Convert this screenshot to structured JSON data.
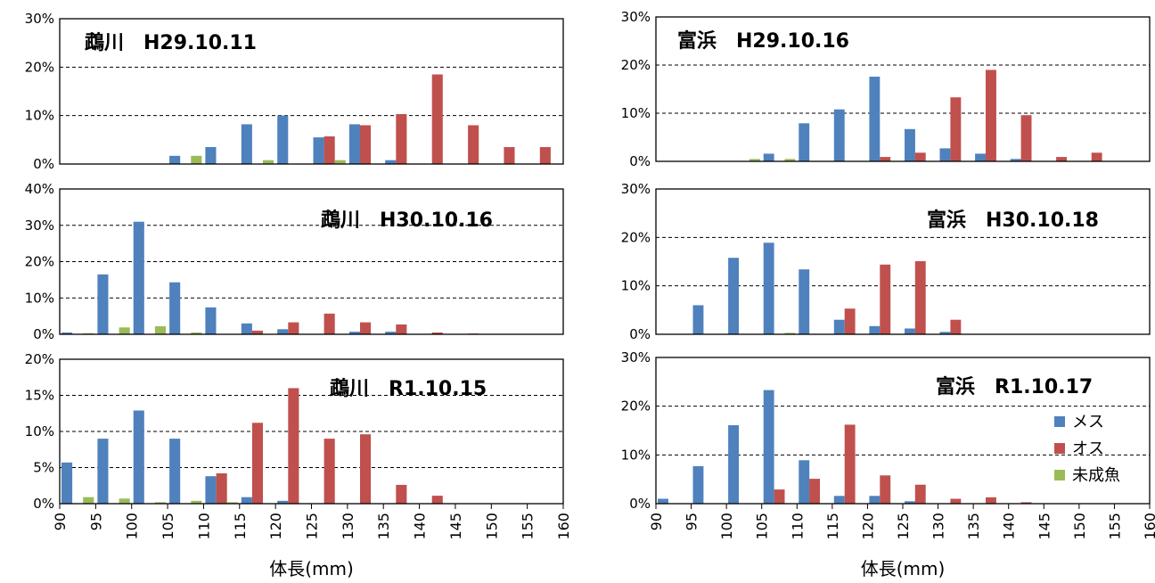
{
  "series_names": [
    "メス",
    "オス",
    "未成魚"
  ],
  "colors": {
    "female": "#4F81BD",
    "male": "#C0504D",
    "juvenile": "#9BBB59",
    "grid": "#000000"
  },
  "x_axis_label": "体長(mm)",
  "chart_data": [
    {
      "type": "bar",
      "title": "鵡川　H29.10.11",
      "ylim": [
        0,
        30
      ],
      "yticks": [
        0,
        10,
        20,
        30
      ],
      "yunit": "%",
      "categories": [
        "90",
        "95",
        "100",
        "105",
        "110",
        "115",
        "120",
        "125",
        "130",
        "135",
        "140",
        "145",
        "150",
        "155"
      ],
      "series": [
        {
          "name": "メス",
          "values": [
            0,
            0,
            0,
            1.7,
            3.5,
            8.2,
            10.0,
            5.5,
            8.2,
            0.8,
            0,
            0,
            0,
            0
          ]
        },
        {
          "name": "オス",
          "values": [
            0,
            0,
            0,
            0,
            0,
            0,
            0,
            5.7,
            8.0,
            10.3,
            18.5,
            8.0,
            3.5,
            3.5
          ]
        },
        {
          "name": "未成魚",
          "values": [
            0,
            0,
            0,
            1.7,
            0,
            0.8,
            0,
            0.8,
            0,
            0,
            0,
            0,
            0,
            0
          ]
        }
      ]
    },
    {
      "type": "bar",
      "title": "鵡川　H30.10.16",
      "ylim": [
        0,
        40
      ],
      "yticks": [
        0,
        10,
        20,
        30,
        40
      ],
      "yunit": "%",
      "categories": [
        "90",
        "95",
        "100",
        "105",
        "110",
        "115",
        "120",
        "125",
        "130",
        "135",
        "140",
        "145",
        "150",
        "155"
      ],
      "series": [
        {
          "name": "メス",
          "values": [
            0.5,
            16.5,
            31.0,
            14.3,
            7.4,
            3.0,
            1.4,
            0,
            0.7,
            0.7,
            0,
            0,
            0,
            0
          ]
        },
        {
          "name": "オス",
          "values": [
            0,
            0,
            0,
            0,
            0,
            1.0,
            3.3,
            5.7,
            3.3,
            2.7,
            0.5,
            0.2,
            0,
            0
          ]
        },
        {
          "name": "未成魚",
          "values": [
            0.3,
            1.9,
            2.2,
            0.5,
            0,
            0,
            0,
            0,
            0,
            0,
            0,
            0,
            0,
            0
          ]
        }
      ]
    },
    {
      "type": "bar",
      "title": "鵡川　R1.10.15",
      "ylim": [
        0,
        20
      ],
      "yticks": [
        0,
        5,
        10,
        15,
        20
      ],
      "yunit": "%",
      "categories": [
        "90",
        "95",
        "100",
        "105",
        "110",
        "115",
        "120",
        "125",
        "130",
        "135",
        "140",
        "145",
        "150",
        "155"
      ],
      "series": [
        {
          "name": "メス",
          "values": [
            5.7,
            9.0,
            12.9,
            9.0,
            3.8,
            0.9,
            0.4,
            0,
            0,
            0,
            0,
            0,
            0,
            0
          ]
        },
        {
          "name": "オス",
          "values": [
            0,
            0,
            0,
            0,
            4.2,
            11.2,
            16.0,
            9.0,
            9.6,
            2.6,
            1.1,
            0,
            0,
            0
          ]
        },
        {
          "name": "未成魚",
          "values": [
            0.9,
            0.7,
            0.2,
            0.4,
            0.2,
            0,
            0,
            0,
            0,
            0,
            0,
            0,
            0,
            0
          ]
        }
      ]
    },
    {
      "type": "bar",
      "title": "富浜　H29.10.16",
      "ylim": [
        0,
        30
      ],
      "yticks": [
        0,
        10,
        20,
        30
      ],
      "yunit": "%",
      "categories": [
        "90",
        "95",
        "100",
        "105",
        "110",
        "115",
        "120",
        "125",
        "130",
        "135",
        "140",
        "145",
        "150",
        "155"
      ],
      "series": [
        {
          "name": "メス",
          "values": [
            0,
            0,
            0,
            1.6,
            7.9,
            10.8,
            17.6,
            6.7,
            2.7,
            1.6,
            0.5,
            0,
            0,
            0
          ]
        },
        {
          "name": "オス",
          "values": [
            0,
            0,
            0,
            0,
            0,
            0,
            0.9,
            1.8,
            13.3,
            19.0,
            9.6,
            0.9,
            1.8,
            0
          ]
        },
        {
          "name": "未成魚",
          "values": [
            0,
            0,
            0.5,
            0.5,
            0,
            0,
            0,
            0,
            0,
            0,
            0,
            0,
            0,
            0
          ]
        }
      ]
    },
    {
      "type": "bar",
      "title": "富浜　H30.10.18",
      "ylim": [
        0,
        30
      ],
      "yticks": [
        0,
        10,
        20,
        30
      ],
      "yunit": "%",
      "categories": [
        "90",
        "95",
        "100",
        "105",
        "110",
        "115",
        "120",
        "125",
        "130",
        "135",
        "140",
        "145",
        "150",
        "155"
      ],
      "series": [
        {
          "name": "メス",
          "values": [
            0,
            6.0,
            15.8,
            18.9,
            13.4,
            3.0,
            1.7,
            1.2,
            0.5,
            0,
            0,
            0,
            0,
            0
          ]
        },
        {
          "name": "オス",
          "values": [
            0,
            0,
            0,
            0,
            0,
            5.3,
            14.4,
            15.1,
            3.0,
            0,
            0,
            0,
            0,
            0
          ]
        },
        {
          "name": "未成魚",
          "values": [
            0,
            0,
            0,
            0.3,
            0,
            0,
            0,
            0,
            0,
            0,
            0,
            0,
            0,
            0
          ]
        }
      ]
    },
    {
      "type": "bar",
      "title": "富浜　R1.10.17",
      "ylim": [
        0,
        30
      ],
      "yticks": [
        0,
        10,
        20,
        30
      ],
      "yunit": "%",
      "categories": [
        "90",
        "95",
        "100",
        "105",
        "110",
        "115",
        "120",
        "125",
        "130",
        "135",
        "140",
        "145",
        "150",
        "155"
      ],
      "series": [
        {
          "name": "メス",
          "values": [
            1.0,
            7.7,
            16.1,
            23.3,
            8.9,
            1.6,
            1.6,
            0.5,
            0,
            0,
            0,
            0,
            0,
            0
          ]
        },
        {
          "name": "オス",
          "values": [
            0,
            0,
            0,
            2.9,
            5.1,
            16.2,
            5.8,
            3.9,
            1.0,
            1.3,
            0.3,
            0,
            0,
            0
          ]
        },
        {
          "name": "未成魚",
          "values": [
            0,
            0,
            0,
            0,
            0,
            0,
            0,
            0,
            0,
            0,
            0,
            0,
            0,
            0
          ]
        }
      ]
    }
  ],
  "x_tick_labels": {
    "left": [
      "90",
      "95",
      "100",
      "105",
      "110",
      "115",
      "120",
      "125",
      "130",
      "135",
      "140",
      "145",
      "150",
      "155",
      "160"
    ],
    "right": [
      "90",
      "95",
      "100",
      "105",
      "110",
      "115",
      "120",
      "125",
      "130",
      "135",
      "140",
      "145",
      "150",
      "155",
      "160"
    ]
  }
}
